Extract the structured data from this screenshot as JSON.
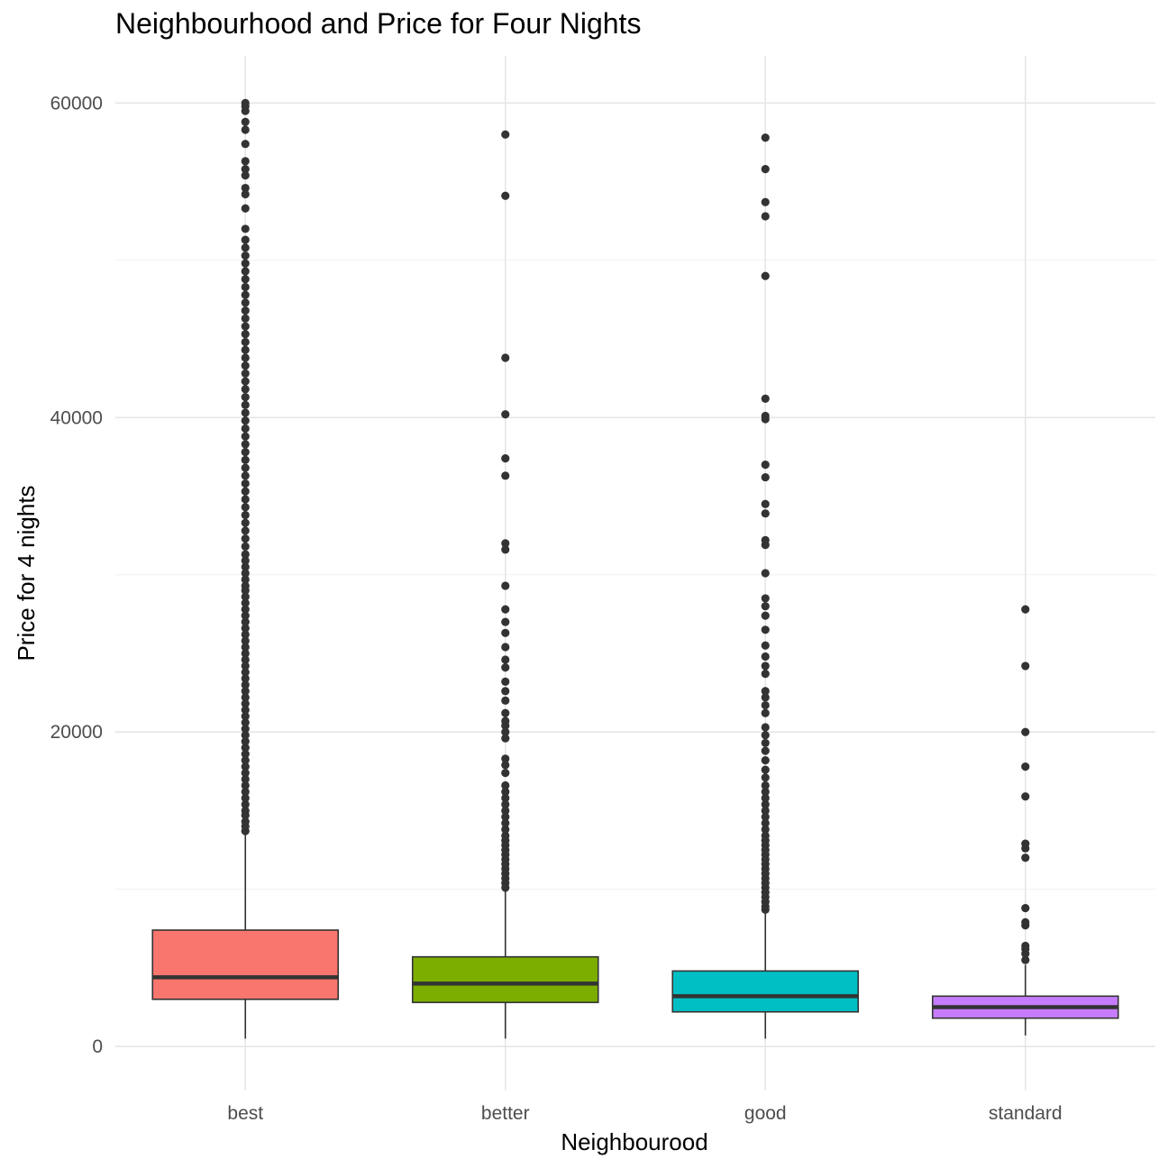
{
  "chart_data": {
    "type": "box",
    "title": "Neighbourhood and Price for Four Nights",
    "xlabel": "Neighbourood",
    "ylabel": "Price for 4 nights",
    "categories": [
      "best",
      "better",
      "good",
      "standard"
    ],
    "ylim": [
      -2800,
      63000
    ],
    "yticks": [
      0,
      20000,
      40000,
      60000
    ],
    "grid": true,
    "legend": "none",
    "boxes": [
      {
        "category": "best",
        "color": "#F8766D",
        "whisker_low": 500,
        "q1": 3000,
        "median": 4400,
        "q3": 7400,
        "whisker_high": 13600,
        "outliers": [
          13700,
          14000,
          14300,
          14700,
          15000,
          15400,
          15800,
          16200,
          16600,
          17000,
          17400,
          17800,
          18200,
          18600,
          19000,
          19400,
          19800,
          20200,
          20600,
          21000,
          21400,
          21800,
          22200,
          22600,
          23000,
          23400,
          23800,
          24200,
          24600,
          25000,
          25400,
          25800,
          26200,
          26600,
          27000,
          27400,
          27800,
          28200,
          28600,
          29000,
          29300,
          29700,
          30100,
          30500,
          30900,
          31300,
          31800,
          32300,
          32800,
          33300,
          33800,
          34300,
          34800,
          35300,
          35800,
          36300,
          36800,
          37300,
          37800,
          38300,
          38800,
          39300,
          39800,
          40300,
          40800,
          41300,
          41800,
          42300,
          42800,
          43300,
          43800,
          44300,
          44800,
          45300,
          45800,
          46300,
          46800,
          47300,
          47800,
          48300,
          48800,
          49300,
          49800,
          50300,
          50800,
          51300,
          52000,
          53300,
          54200,
          54600,
          55400,
          55800,
          56300,
          57400,
          58300,
          58800,
          59500,
          59800,
          60000
        ]
      },
      {
        "category": "better",
        "color": "#7CAE00",
        "whisker_low": 500,
        "q1": 2800,
        "median": 4000,
        "q3": 5700,
        "whisker_high": 10000,
        "outliers": [
          10100,
          10400,
          10700,
          11000,
          11300,
          11600,
          11900,
          12200,
          12500,
          12800,
          13100,
          13400,
          13800,
          14200,
          14600,
          15000,
          15400,
          15800,
          16200,
          16600,
          17400,
          17900,
          18300,
          19600,
          20000,
          20400,
          20700,
          21200,
          22000,
          22600,
          23200,
          24100,
          24600,
          25400,
          26300,
          27000,
          27800,
          29300,
          31600,
          32000,
          36300,
          37400,
          40200,
          43800,
          54100,
          58000
        ]
      },
      {
        "category": "good",
        "color": "#00BFC4",
        "whisker_low": 500,
        "q1": 2200,
        "median": 3200,
        "q3": 4800,
        "whisker_high": 8600,
        "outliers": [
          8700,
          8900,
          9200,
          9500,
          9800,
          10100,
          10400,
          10700,
          11000,
          11300,
          11600,
          11900,
          12200,
          12500,
          12800,
          13100,
          13400,
          13800,
          14200,
          14600,
          15000,
          15400,
          15800,
          16200,
          16600,
          17100,
          17600,
          18200,
          18800,
          19300,
          19800,
          20300,
          21200,
          21700,
          22200,
          22600,
          23700,
          24200,
          24800,
          25500,
          26500,
          27400,
          28000,
          28500,
          30100,
          31900,
          32200,
          33900,
          34500,
          36200,
          37000,
          39900,
          40100,
          41200,
          49000,
          52800,
          53700,
          55800,
          57800
        ]
      },
      {
        "category": "standard",
        "color": "#C77CFF",
        "whisker_low": 700,
        "q1": 1800,
        "median": 2500,
        "q3": 3200,
        "whisker_high": 5200,
        "outliers": [
          5500,
          5900,
          6200,
          6400,
          7700,
          7900,
          8800,
          12000,
          12600,
          12900,
          15900,
          17800,
          20000,
          24200,
          27800
        ]
      }
    ]
  }
}
